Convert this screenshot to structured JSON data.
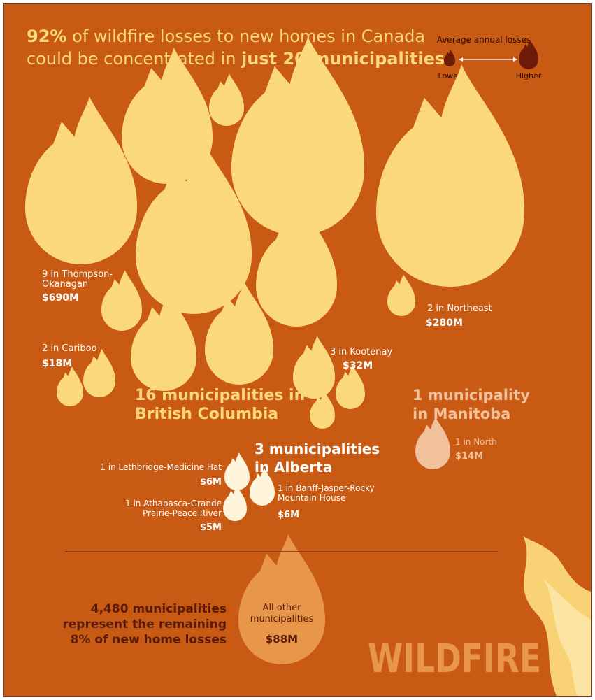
{
  "headline": {
    "line1_bold": "92%",
    "line1_rest": " of wildfire losses to new homes in Canada",
    "line2_rest": "could be concentrated in ",
    "line2_bold": "just 20 municipalities"
  },
  "legend": {
    "title": "Average annual losses",
    "lower": "Lower",
    "higher": "Higher"
  },
  "colors": {
    "background": "#c85a14",
    "flame_bc": "#fbd97a",
    "flame_mb": "#f0c19a",
    "flame_ab": "#fff4dc",
    "flame_other": "#e8974a",
    "legend_flame": "#6e1a08",
    "dark_text": "#5a1a08",
    "wildfire_watermark": "#e8974a"
  },
  "groups": {
    "bc_title_l1": "16 municipalities in",
    "bc_title_l2": "British Columbia",
    "ab_title_l1": "3 municipalities",
    "ab_title_l2": "in Alberta",
    "mb_title_l1": "1 municipality",
    "mb_title_l2": "in Manitoba"
  },
  "regions": {
    "thompson": {
      "l1": "9 in Thompson-",
      "l2": "Okanagan",
      "value": "$690M"
    },
    "cariboo": {
      "l1": "2 in Cariboo",
      "value": "$18M"
    },
    "kootenay": {
      "l1": "3 in Kootenay",
      "value": "$32M"
    },
    "northeast": {
      "l1": "2 in Northeast",
      "value": "$280M"
    },
    "north_mb": {
      "l1": "1 in North",
      "value": "$14M"
    },
    "lethbridge": {
      "l1": "1 in Lethbridge-Medicine Hat",
      "value": "$6M"
    },
    "athabasca": {
      "l1": "1 in Athabasca-Grande",
      "l2": "Prairie-Peace River",
      "value": "$5M"
    },
    "banff": {
      "l1": "1 in Banff-Jasper-Rocky",
      "l2": "Mountain House",
      "value": "$6M"
    }
  },
  "bottom": {
    "l1": "4,480 municipalities",
    "l2": "represent the remaining",
    "l3": "8% of new home losses",
    "other_l1": "All other",
    "other_l2": "municipalities",
    "other_value": "$88M"
  },
  "watermark": "WILDFIRE",
  "chart_data": {
    "type": "bubble",
    "title": "92% of wildfire losses to new homes in Canada could be concentrated in just 20 municipalities",
    "measure": "Average annual losses",
    "series": [
      {
        "name": "British Columbia",
        "municipalities": 16,
        "regions": [
          {
            "region": "Thompson-Okanagan",
            "count": 9,
            "value_musd": 690
          },
          {
            "region": "Cariboo",
            "count": 2,
            "value_musd": 18
          },
          {
            "region": "Kootenay",
            "count": 3,
            "value_musd": 32
          },
          {
            "region": "Northeast",
            "count": 2,
            "value_musd": 280
          }
        ]
      },
      {
        "name": "Alberta",
        "municipalities": 3,
        "regions": [
          {
            "region": "Lethbridge-Medicine Hat",
            "count": 1,
            "value_musd": 6
          },
          {
            "region": "Athabasca-Grande Prairie-Peace River",
            "count": 1,
            "value_musd": 5
          },
          {
            "region": "Banff-Jasper-Rocky Mountain House",
            "count": 1,
            "value_musd": 6
          }
        ]
      },
      {
        "name": "Manitoba",
        "municipalities": 1,
        "regions": [
          {
            "region": "North",
            "count": 1,
            "value_musd": 14
          }
        ]
      },
      {
        "name": "All other municipalities",
        "municipalities": 4480,
        "value_musd": 88,
        "share_pct": 8
      }
    ],
    "concentrated_share_pct": 92
  }
}
